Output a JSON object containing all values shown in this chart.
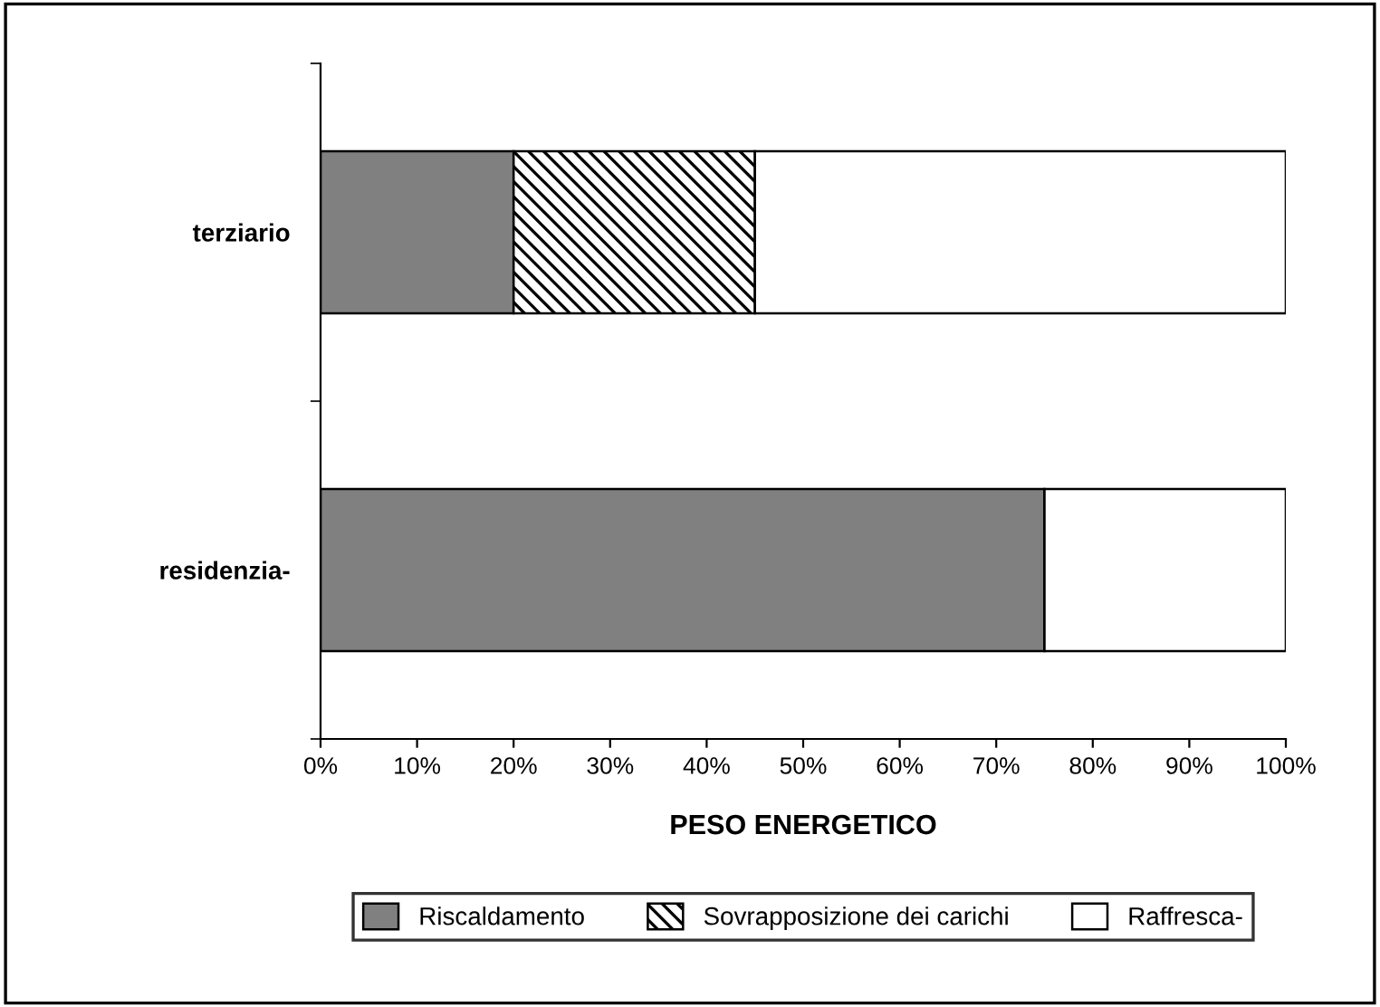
{
  "chart_data": {
    "type": "bar",
    "orientation": "horizontal",
    "stacked": true,
    "xlabel": "PESO ENERGETICO",
    "categories": [
      "terziario",
      "residenzia-"
    ],
    "series": [
      {
        "name": "Riscaldamento",
        "color": "#808080",
        "values": [
          20,
          75
        ]
      },
      {
        "name": "Sovrapposizione dei carichi",
        "color": "#000000",
        "values": [
          25,
          0
        ]
      },
      {
        "name": "Raffresca-",
        "color": "#ffffff",
        "values": [
          55,
          25
        ]
      }
    ],
    "xlim": [
      0,
      100
    ],
    "xticks": [
      {
        "value": 0,
        "label": "0%"
      },
      {
        "value": 10,
        "label": "10%"
      },
      {
        "value": 20,
        "label": "20%"
      },
      {
        "value": 30,
        "label": "30%"
      },
      {
        "value": 40,
        "label": "40%"
      },
      {
        "value": 50,
        "label": "50%"
      },
      {
        "value": 60,
        "label": "60%"
      },
      {
        "value": 70,
        "label": "70%"
      },
      {
        "value": 80,
        "label": "80%"
      },
      {
        "value": 90,
        "label": "90%"
      },
      {
        "value": 100,
        "label": "100%"
      }
    ],
    "grid": false,
    "legend": "bottom"
  }
}
